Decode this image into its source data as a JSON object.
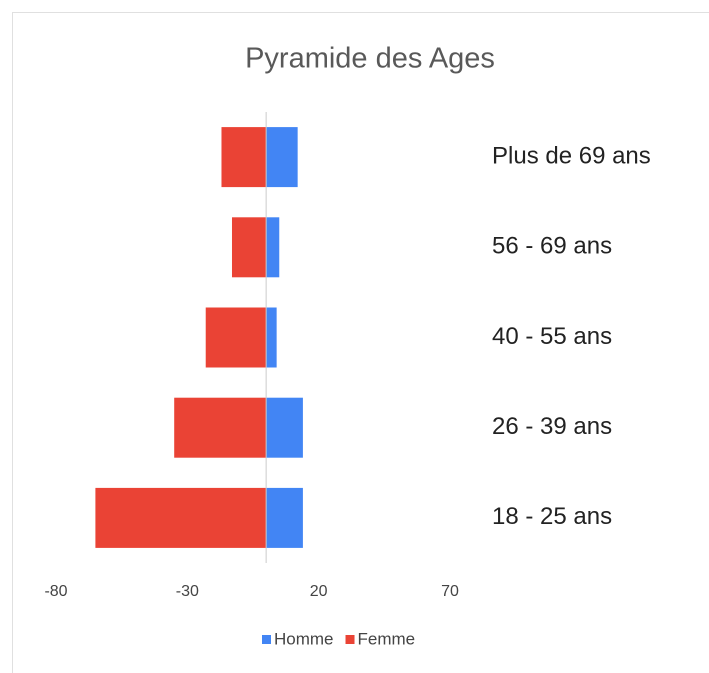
{
  "chart_data": {
    "type": "bar",
    "orientation": "horizontal",
    "stacked": true,
    "title": "Pyramide des Ages",
    "categories": [
      "Plus de 69 ans",
      "56 - 69 ans",
      "40 - 55 ans",
      "26 - 39 ans",
      "18 - 25 ans"
    ],
    "series": [
      {
        "name": "Homme",
        "color": "#4285f4",
        "values": [
          12,
          5,
          4,
          14,
          14
        ]
      },
      {
        "name": "Femme",
        "color": "#ea4335",
        "values": [
          -17,
          -13,
          -23,
          -35,
          -65
        ]
      }
    ],
    "xlim": [
      -80,
      70
    ],
    "xticks": [
      -80,
      -30,
      20,
      70
    ],
    "legend": "bottom"
  }
}
